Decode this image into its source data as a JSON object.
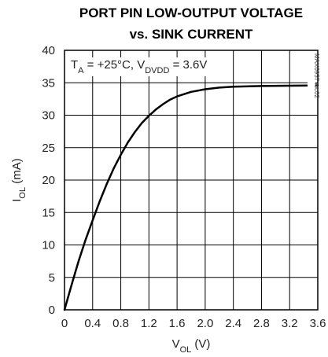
{
  "chart_data": {
    "type": "line",
    "title_line1": "PORT PIN LOW-OUTPUT VOLTAGE",
    "title_line2": "vs. SINK CURRENT",
    "xlabel_main": "V",
    "xlabel_sub": "OL",
    "xlabel_unit": " (V)",
    "ylabel_main": "I",
    "ylabel_sub": "OL",
    "ylabel_unit": " (mA)",
    "annotation": {
      "t_main": "T",
      "t_sub": "A",
      "t_rest": " = +25°C, V",
      "v_sub": "DVDD",
      "v_rest": " = 3.6V"
    },
    "figure_code": "MAX6957 toc02",
    "xlim": [
      0,
      3.6
    ],
    "ylim": [
      0,
      40
    ],
    "x_ticks": [
      "0",
      "0.4",
      "0.8",
      "1.2",
      "1.6",
      "2.0",
      "2.4",
      "2.8",
      "3.2",
      "3.6"
    ],
    "y_ticks": [
      "0",
      "5",
      "10",
      "15",
      "20",
      "25",
      "30",
      "35",
      "40"
    ],
    "x_tick_values": [
      0,
      0.4,
      0.8,
      1.2,
      1.6,
      2.0,
      2.4,
      2.8,
      3.2,
      3.6
    ],
    "y_tick_values": [
      0,
      5,
      10,
      15,
      20,
      25,
      30,
      35,
      40
    ],
    "grid": true,
    "series": [
      {
        "x": [
          0,
          0.1,
          0.2,
          0.3,
          0.4,
          0.5,
          0.6,
          0.7,
          0.8,
          0.9,
          1.0,
          1.1,
          1.2,
          1.3,
          1.4,
          1.5,
          1.6,
          1.8,
          2.0,
          2.2,
          2.4,
          2.8,
          3.2,
          3.6
        ],
        "y": [
          0,
          3.8,
          7.5,
          10.8,
          13.8,
          16.7,
          19.4,
          21.8,
          23.9,
          25.8,
          27.4,
          28.8,
          29.9,
          30.9,
          31.7,
          32.4,
          32.9,
          33.6,
          34.0,
          34.25,
          34.4,
          34.5,
          34.55,
          34.6
        ],
        "color": "#000000"
      }
    ]
  }
}
